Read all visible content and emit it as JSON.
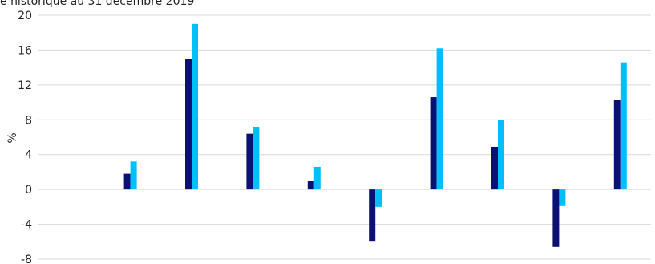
{
  "subtitle": "e historique au 31 décembre 2019",
  "colors": {
    "series_1": "#0a1172",
    "series_2": "#00bfff",
    "grid": "#d9d9d9"
  },
  "chart_data": {
    "type": "bar",
    "ylabel": "%",
    "ylim": [
      -8,
      20
    ],
    "yticks": [
      20,
      16,
      12,
      8,
      4,
      0,
      -4,
      -8
    ],
    "grid": true,
    "categories": [
      "",
      "",
      "",
      "",
      "",
      "",
      "",
      "",
      "",
      ""
    ],
    "series": [
      {
        "values": [
          null,
          1.8,
          15.0,
          6.4,
          1.0,
          -5.9,
          10.6,
          4.9,
          -6.6,
          10.3
        ]
      },
      {
        "values": [
          null,
          3.2,
          19.0,
          7.2,
          2.6,
          -2.0,
          16.2,
          8.0,
          -1.9,
          14.6
        ]
      }
    ]
  }
}
